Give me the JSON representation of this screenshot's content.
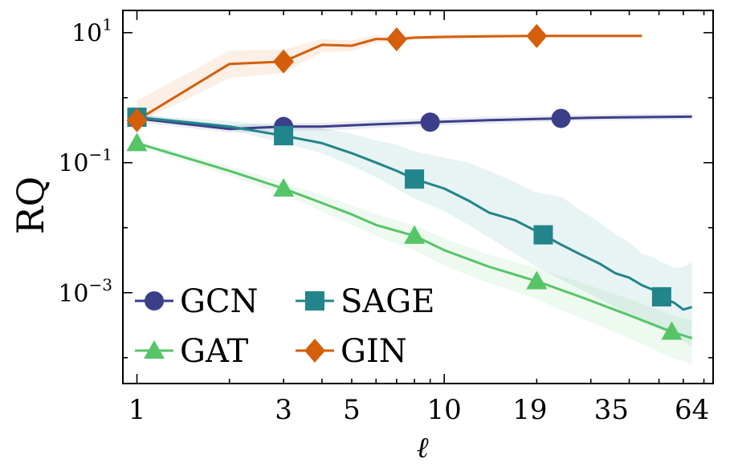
{
  "chart_data": {
    "type": "line",
    "title": "",
    "xlabel": "ℓ",
    "ylabel": "RQ",
    "xscale": "log",
    "yscale": "log",
    "xlim": [
      0.9,
      75
    ],
    "ylim": [
      4e-05,
      22
    ],
    "xticks": [
      1,
      3,
      5,
      10,
      19,
      35,
      64
    ],
    "xtick_labels": [
      "1",
      "3",
      "5",
      "10",
      "19",
      "35",
      "64"
    ],
    "yticks": [
      0.001,
      0.1,
      10
    ],
    "ytick_labels": [
      {
        "base": "10",
        "exp": "−3"
      },
      {
        "base": "10",
        "exp": "−1"
      },
      {
        "base": "10",
        "exp": "1"
      }
    ],
    "legend": {
      "position": "bottom-left",
      "ncol": 2
    },
    "series": [
      {
        "name": "GCN",
        "color": "#3b3f8a",
        "marker": "circle",
        "x": [
          1,
          2,
          3,
          4,
          6,
          9,
          14,
          20,
          24,
          30,
          40,
          64
        ],
        "y": [
          0.48,
          0.33,
          0.36,
          0.36,
          0.39,
          0.42,
          0.45,
          0.47,
          0.48,
          0.49,
          0.5,
          0.51
        ],
        "lower": [
          0.42,
          0.29,
          0.31,
          0.31,
          0.34,
          0.37,
          0.4,
          0.42,
          0.43,
          0.44,
          0.45,
          0.46
        ],
        "upper": [
          0.55,
          0.38,
          0.41,
          0.41,
          0.45,
          0.48,
          0.51,
          0.53,
          0.54,
          0.55,
          0.56,
          0.57
        ],
        "markers_x": [
          3,
          9,
          24
        ]
      },
      {
        "name": "SAGE",
        "color": "#21858b",
        "marker": "square",
        "x": [
          1,
          2,
          3,
          4,
          5,
          6,
          7,
          8,
          10,
          12,
          14,
          17,
          20,
          24,
          28,
          32,
          36,
          40,
          44,
          48,
          52,
          56,
          60,
          64
        ],
        "y": [
          0.5,
          0.36,
          0.26,
          0.2,
          0.14,
          0.1,
          0.075,
          0.056,
          0.04,
          0.026,
          0.017,
          0.013,
          0.0088,
          0.0055,
          0.0038,
          0.0028,
          0.002,
          0.0017,
          0.0013,
          0.0011,
          0.0008,
          0.0007,
          0.00055,
          0.0006
        ],
        "lower": [
          0.47,
          0.32,
          0.2,
          0.14,
          0.09,
          0.06,
          0.04,
          0.028,
          0.018,
          0.011,
          0.007,
          0.004,
          0.0025,
          0.0016,
          0.0011,
          0.0008,
          0.0006,
          0.00045,
          0.00035,
          0.0003,
          0.00025,
          0.0002,
          0.00018,
          0.00015
        ],
        "upper": [
          0.54,
          0.44,
          0.36,
          0.34,
          0.28,
          0.22,
          0.19,
          0.15,
          0.12,
          0.1,
          0.075,
          0.05,
          0.035,
          0.03,
          0.018,
          0.012,
          0.008,
          0.006,
          0.004,
          0.0035,
          0.0028,
          0.0024,
          0.0025,
          0.003
        ],
        "markers_x": [
          1,
          3,
          8,
          21,
          51
        ]
      },
      {
        "name": "GAT",
        "color": "#56c567",
        "marker": "triangle",
        "x": [
          1,
          2,
          3,
          4,
          5,
          6,
          8,
          10,
          14,
          20,
          28,
          40,
          55,
          64
        ],
        "y": [
          0.2,
          0.075,
          0.04,
          0.024,
          0.016,
          0.011,
          0.0075,
          0.0045,
          0.0025,
          0.0015,
          0.00085,
          0.00045,
          0.00025,
          0.0002
        ],
        "lower": [
          0.18,
          0.063,
          0.032,
          0.018,
          0.011,
          0.0075,
          0.0045,
          0.0026,
          0.0014,
          0.0008,
          0.0004,
          0.0002,
          0.0001,
          8e-05
        ],
        "upper": [
          0.22,
          0.088,
          0.05,
          0.032,
          0.022,
          0.016,
          0.011,
          0.0068,
          0.0038,
          0.0024,
          0.0014,
          0.0008,
          0.00045,
          0.00038
        ],
        "markers_x": [
          1,
          3,
          8,
          20,
          55
        ]
      },
      {
        "name": "GIN",
        "color": "#d55e0b",
        "marker": "diamond",
        "x": [
          1,
          2,
          3,
          4,
          5,
          6,
          7,
          8,
          10,
          14,
          20,
          30,
          44
        ],
        "y": [
          0.45,
          3.3,
          3.6,
          6.5,
          6.3,
          8.0,
          7.9,
          8.4,
          8.6,
          8.8,
          8.9,
          8.9,
          8.9
        ],
        "lower": [
          0.4,
          2.0,
          2.4,
          5.0,
          5.2,
          7.0,
          7.2,
          7.8,
          8.0,
          8.3,
          8.4,
          8.5,
          8.5
        ],
        "upper": [
          0.9,
          5.3,
          5.5,
          8.0,
          7.6,
          9.2,
          8.8,
          9.2,
          9.3,
          9.4,
          9.4,
          9.4,
          9.4
        ],
        "markers_x": [
          1,
          3,
          7,
          20
        ]
      }
    ]
  }
}
